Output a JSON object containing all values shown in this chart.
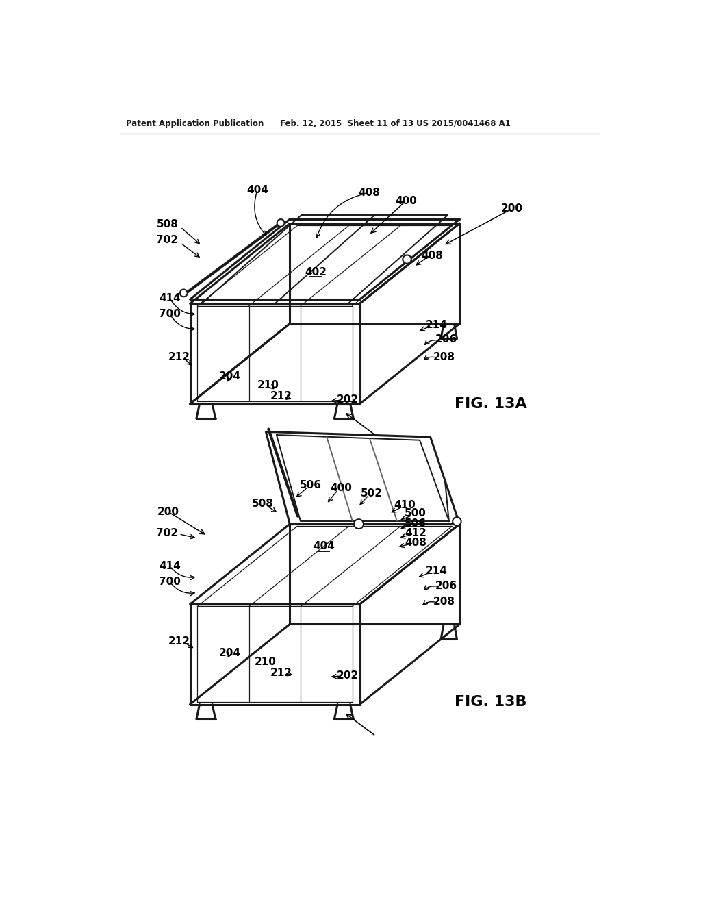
{
  "header_left": "Patent Application Publication",
  "header_mid": "Feb. 12, 2015  Sheet 11 of 13",
  "header_right": "US 2015/0041468 A1",
  "fig_a_label": "FIG. 13A",
  "fig_b_label": "FIG. 13B",
  "bg_color": "#ffffff",
  "line_color": "#1a1a1a",
  "gray_color": "#888888"
}
